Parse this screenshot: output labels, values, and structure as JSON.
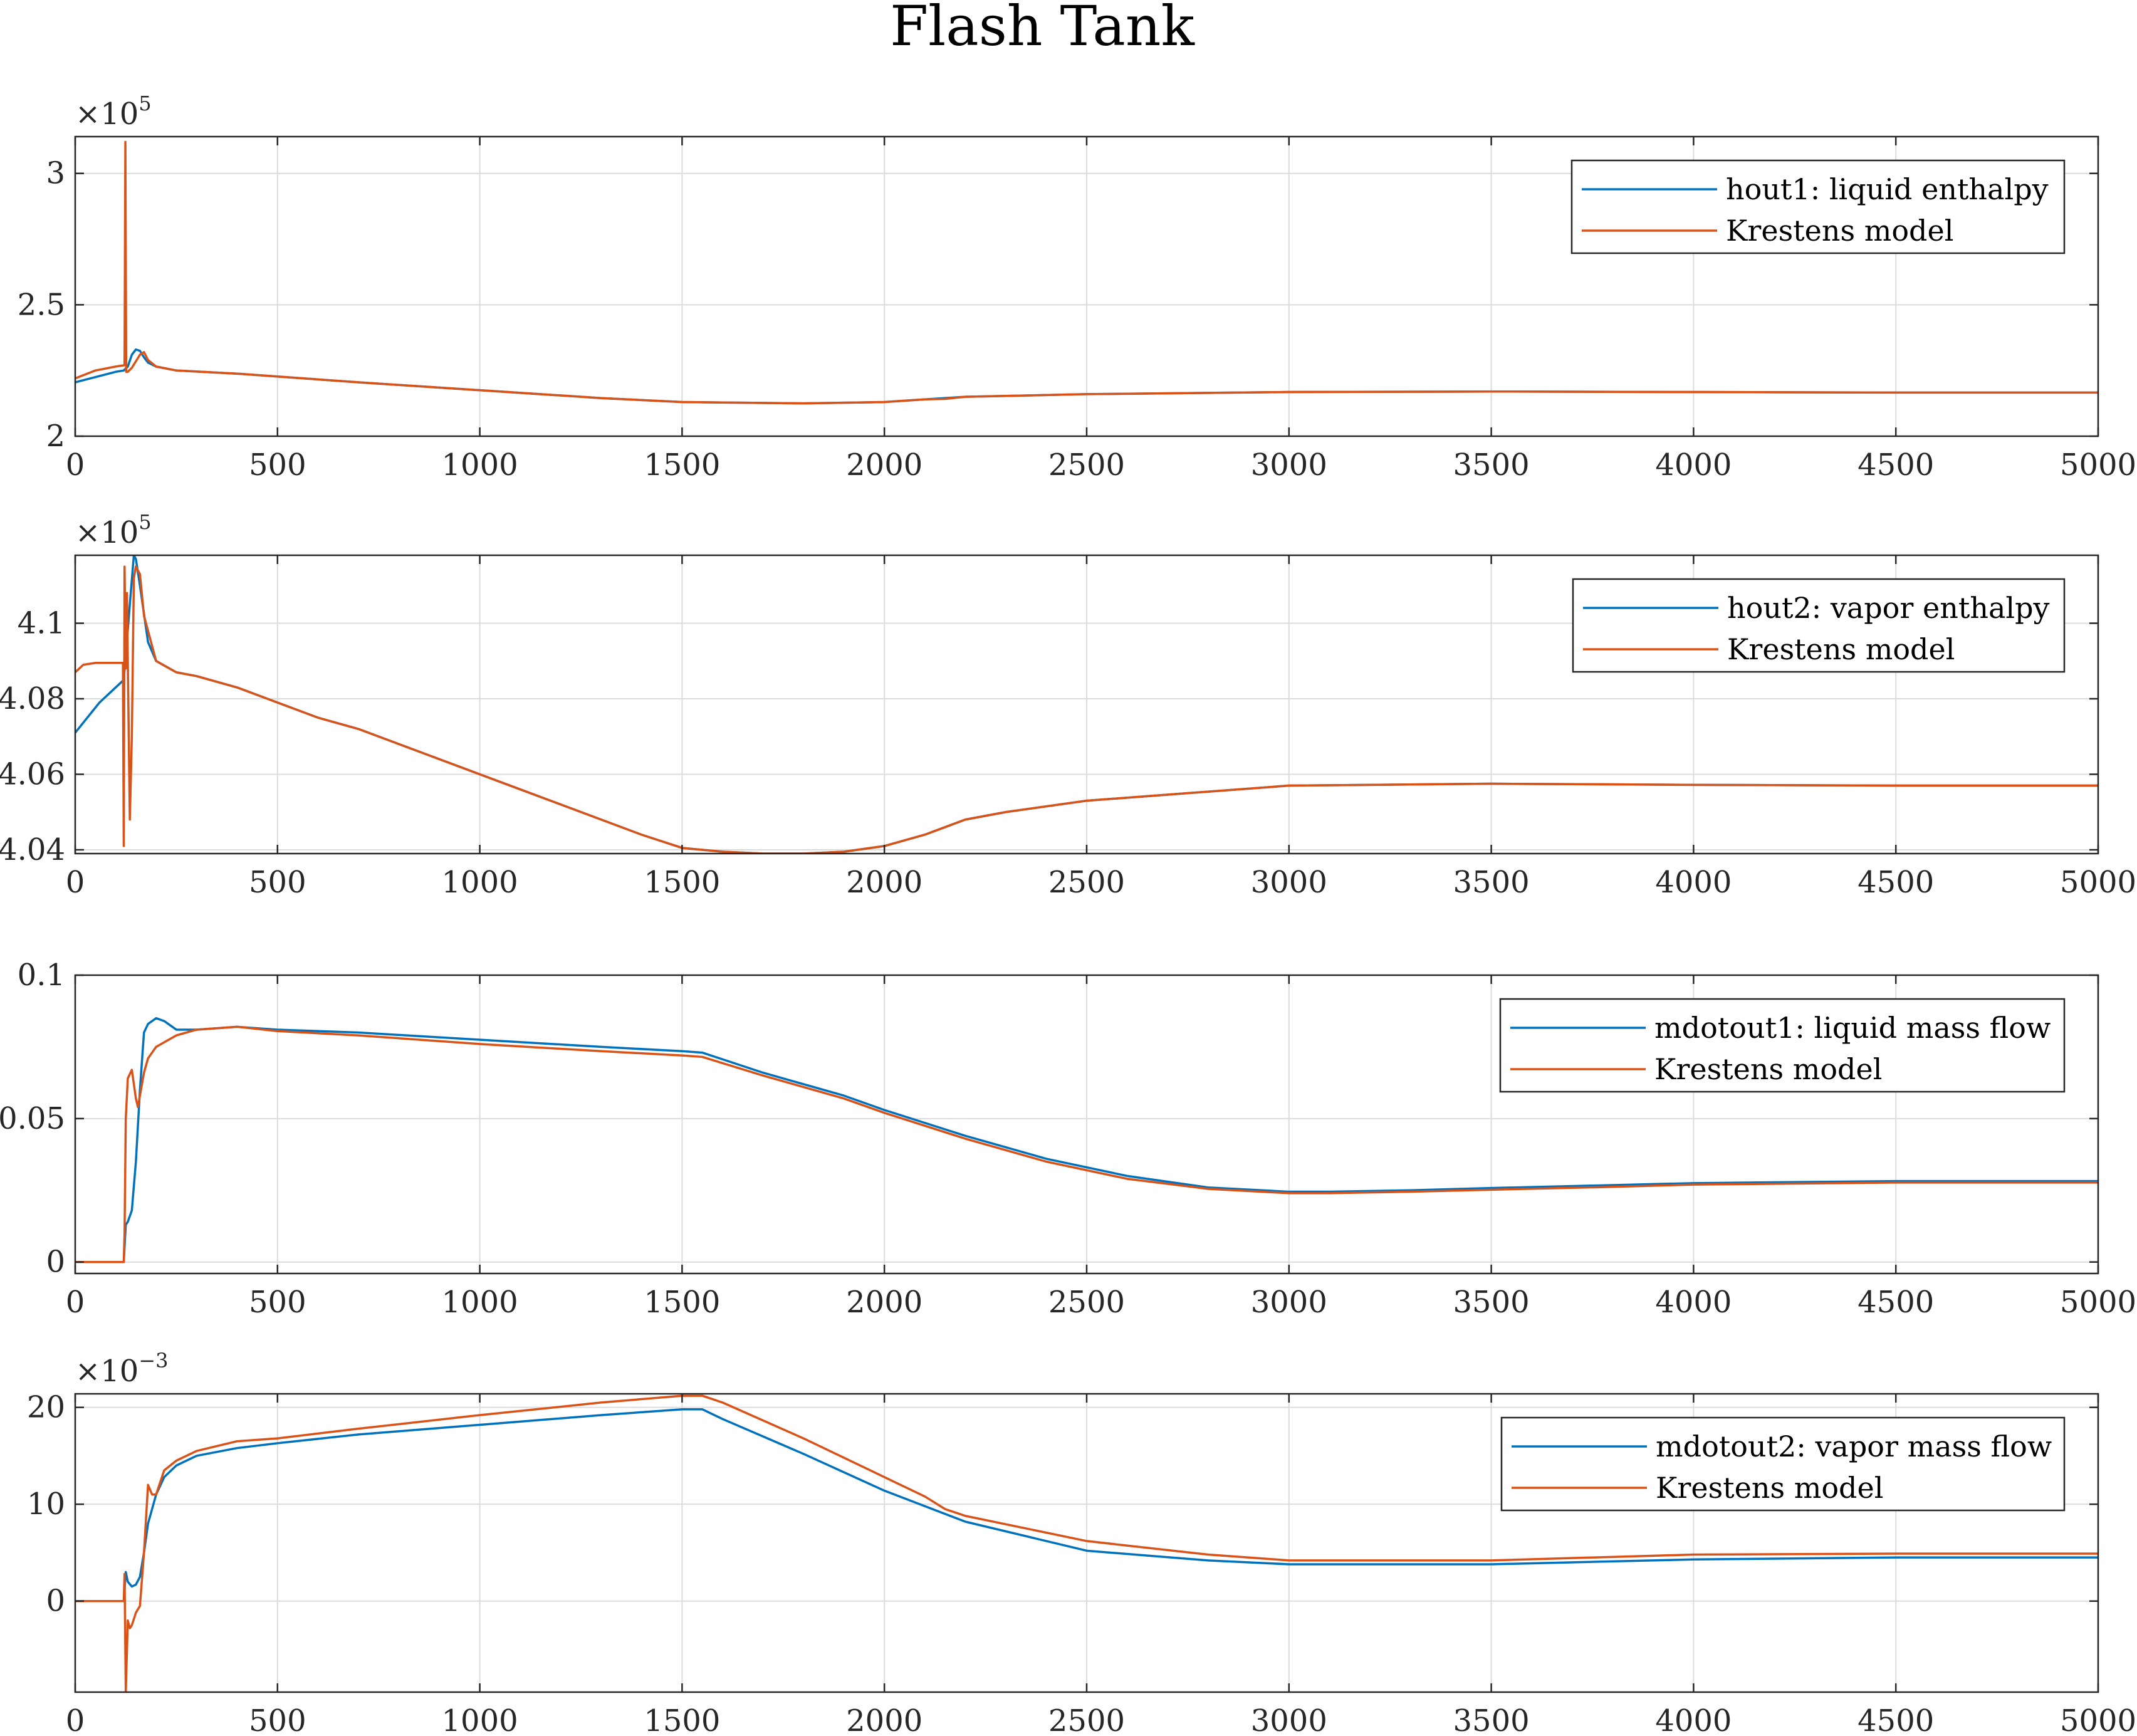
{
  "title": "Flash Tank",
  "colors": {
    "series1": "#0072BD",
    "series2": "#D95319",
    "grid": "#DCDCDC",
    "axis": "#262626"
  },
  "chart_data": [
    {
      "type": "line",
      "grid": true,
      "legend_position": "top-right",
      "xlim": [
        0,
        5000
      ],
      "ylim": [
        200000,
        314000
      ],
      "x_ticks": [
        0,
        500,
        1000,
        1500,
        2000,
        2500,
        3000,
        3500,
        4000,
        4500,
        5000
      ],
      "y_ticks": [
        200000,
        250000,
        300000
      ],
      "y_tick_labels": [
        "2",
        "2.5",
        "3"
      ],
      "y_exponent": {
        "base": "×10",
        "power": "5"
      },
      "series": [
        {
          "name": "hout1: liquid enthalpy",
          "color": "#0072BD",
          "x": [
            0,
            50,
            100,
            120,
            130,
            140,
            150,
            160,
            170,
            180,
            200,
            250,
            400,
            700,
            1000,
            1300,
            1500,
            1800,
            2000,
            2100,
            2200,
            2500,
            3000,
            3500,
            4000,
            4500,
            5000
          ],
          "y": [
            220500,
            222500,
            224500,
            225000,
            226500,
            231000,
            233000,
            232500,
            230000,
            228000,
            226500,
            225000,
            223800,
            220500,
            217500,
            214500,
            213000,
            212500,
            213000,
            214000,
            215000,
            216000,
            216800,
            217000,
            216800,
            216600,
            216600
          ]
        },
        {
          "name": "Krestens model",
          "color": "#D95319",
          "x": [
            0,
            50,
            100,
            122,
            124,
            126,
            130,
            140,
            150,
            160,
            170,
            180,
            200,
            250,
            400,
            700,
            1000,
            1300,
            1500,
            1800,
            2000,
            2100,
            2150,
            2200,
            2500,
            3000,
            3500,
            4000,
            4500,
            5000
          ],
          "y": [
            222000,
            225000,
            226500,
            227000,
            312000,
            224500,
            224500,
            226000,
            228500,
            231000,
            232000,
            229000,
            226500,
            225000,
            223800,
            220500,
            217500,
            214500,
            213000,
            212500,
            213000,
            214000,
            214200,
            215000,
            216000,
            216800,
            217000,
            216800,
            216600,
            216600
          ]
        }
      ]
    },
    {
      "type": "line",
      "grid": true,
      "legend_position": "top-right",
      "xlim": [
        0,
        5000
      ],
      "ylim": [
        403900,
        411800
      ],
      "x_ticks": [
        0,
        500,
        1000,
        1500,
        2000,
        2500,
        3000,
        3500,
        4000,
        4500,
        5000
      ],
      "y_ticks": [
        404000,
        406000,
        408000,
        410000
      ],
      "y_tick_labels": [
        "4.04",
        "4.06",
        "4.08",
        "4.1"
      ],
      "y_exponent": {
        "base": "×10",
        "power": "5"
      },
      "series": [
        {
          "name": "hout2: vapor enthalpy",
          "color": "#0072BD",
          "x": [
            0,
            30,
            60,
            90,
            120,
            135,
            145,
            150,
            160,
            180,
            200,
            250,
            300,
            400,
            500,
            600,
            700,
            800,
            1000,
            1100,
            1200,
            1300,
            1400,
            1500,
            1550,
            1600,
            1700,
            1800,
            1900,
            2000,
            2100,
            2150,
            2200,
            2300,
            2500,
            3000,
            3500,
            4000,
            4500,
            5000
          ],
          "y": [
            407100,
            407500,
            407900,
            408200,
            408500,
            410500,
            411800,
            411700,
            411000,
            409500,
            409000,
            408700,
            408600,
            408300,
            407900,
            407500,
            407200,
            406800,
            406000,
            405600,
            405200,
            404800,
            404400,
            404050,
            404000,
            403950,
            403900,
            403900,
            403950,
            404100,
            404400,
            404600,
            404800,
            405000,
            405300,
            405700,
            405750,
            405720,
            405700,
            405700
          ]
        },
        {
          "name": "Krestens model",
          "color": "#D95319",
          "x": [
            0,
            20,
            50,
            100,
            118,
            120,
            122,
            125,
            128,
            130,
            135,
            140,
            145,
            150,
            160,
            170,
            180,
            200,
            250,
            300,
            400,
            500,
            600,
            700,
            800,
            1000,
            1100,
            1200,
            1300,
            1400,
            1500,
            1550,
            1600,
            1700,
            1800,
            1900,
            2000,
            2100,
            2150,
            2200,
            2300,
            2500,
            3000,
            3500,
            4000,
            4500,
            5000
          ],
          "y": [
            408700,
            408900,
            408950,
            408950,
            408950,
            404100,
            411500,
            408800,
            410800,
            409000,
            404800,
            407000,
            411200,
            411500,
            411300,
            410200,
            409800,
            409000,
            408700,
            408600,
            408300,
            407900,
            407500,
            407200,
            406800,
            406000,
            405600,
            405200,
            404800,
            404400,
            404050,
            404000,
            403950,
            403900,
            403900,
            403950,
            404100,
            404400,
            404600,
            404800,
            405000,
            405300,
            405700,
            405750,
            405720,
            405700,
            405700
          ]
        }
      ]
    },
    {
      "type": "line",
      "grid": true,
      "legend_position": "top-right",
      "xlim": [
        0,
        5000
      ],
      "ylim": [
        -0.004,
        0.1
      ],
      "x_ticks": [
        0,
        500,
        1000,
        1500,
        2000,
        2500,
        3000,
        3500,
        4000,
        4500,
        5000
      ],
      "y_ticks": [
        0,
        0.05,
        0.1
      ],
      "y_tick_labels": [
        "0",
        "0.05",
        "0.1"
      ],
      "series": [
        {
          "name": "mdotout1: liquid mass flow",
          "color": "#0072BD",
          "x": [
            0,
            60,
            120,
            125,
            130,
            140,
            150,
            160,
            170,
            180,
            200,
            220,
            250,
            300,
            400,
            500,
            700,
            1000,
            1300,
            1500,
            1550,
            1700,
            1900,
            2000,
            2200,
            2400,
            2600,
            2800,
            3000,
            3100,
            3300,
            3500,
            3800,
            4000,
            4500,
            5000
          ],
          "y": [
            0,
            0,
            0,
            0.013,
            0.014,
            0.018,
            0.035,
            0.06,
            0.08,
            0.083,
            0.085,
            0.084,
            0.081,
            0.081,
            0.082,
            0.081,
            0.08,
            0.0775,
            0.075,
            0.0735,
            0.073,
            0.066,
            0.058,
            0.053,
            0.044,
            0.036,
            0.03,
            0.026,
            0.0245,
            0.0245,
            0.025,
            0.0258,
            0.0268,
            0.0275,
            0.0282,
            0.0282
          ]
        },
        {
          "name": "Krestens model",
          "color": "#D95319",
          "x": [
            0,
            60,
            120,
            122,
            125,
            130,
            140,
            150,
            155,
            160,
            170,
            180,
            200,
            250,
            300,
            400,
            500,
            700,
            1000,
            1300,
            1500,
            1550,
            1700,
            1900,
            2000,
            2200,
            2400,
            2600,
            2800,
            3000,
            3100,
            3300,
            3500,
            3800,
            4000,
            4500,
            5000
          ],
          "y": [
            0,
            0,
            0,
            0.01,
            0.05,
            0.064,
            0.067,
            0.057,
            0.054,
            0.058,
            0.066,
            0.071,
            0.075,
            0.079,
            0.081,
            0.082,
            0.0805,
            0.079,
            0.076,
            0.0735,
            0.072,
            0.0715,
            0.065,
            0.057,
            0.052,
            0.043,
            0.035,
            0.029,
            0.0255,
            0.024,
            0.024,
            0.0245,
            0.0252,
            0.0262,
            0.027,
            0.0277,
            0.0277
          ]
        }
      ]
    },
    {
      "type": "line",
      "grid": true,
      "legend_position": "top-right",
      "xlim": [
        0,
        5000
      ],
      "ylim": [
        -0.0094,
        0.0214
      ],
      "x_ticks": [
        0,
        500,
        1000,
        1500,
        2000,
        2500,
        3000,
        3500,
        4000,
        4500,
        5000
      ],
      "y_ticks": [
        0,
        0.01,
        0.02
      ],
      "y_tick_labels": [
        "0",
        "10",
        "20"
      ],
      "y_exponent": {
        "base": "×10",
        "power": "−3"
      },
      "series": [
        {
          "name": "mdotout2: vapor mass flow",
          "color": "#0072BD",
          "x": [
            0,
            60,
            120,
            125,
            130,
            140,
            150,
            160,
            170,
            180,
            200,
            220,
            250,
            300,
            400,
            500,
            700,
            1000,
            1300,
            1500,
            1550,
            1600,
            1800,
            2000,
            2200,
            2500,
            2800,
            3000,
            3500,
            4000,
            4500,
            5000
          ],
          "y": [
            0,
            0,
            0,
            0.003,
            0.002,
            0.0015,
            0.0017,
            0.0025,
            0.005,
            0.008,
            0.011,
            0.0128,
            0.014,
            0.015,
            0.0158,
            0.0163,
            0.0172,
            0.0182,
            0.0192,
            0.0198,
            0.0198,
            0.0188,
            0.0152,
            0.0114,
            0.0082,
            0.0052,
            0.0042,
            0.0038,
            0.0038,
            0.0043,
            0.0045,
            0.0045
          ]
        },
        {
          "name": "Krestens model",
          "color": "#D95319",
          "x": [
            0,
            60,
            120,
            122,
            125,
            130,
            135,
            140,
            150,
            160,
            170,
            180,
            190,
            200,
            220,
            250,
            300,
            400,
            500,
            700,
            1000,
            1300,
            1500,
            1550,
            1600,
            1800,
            2000,
            2100,
            2150,
            2200,
            2500,
            2800,
            3000,
            3500,
            4000,
            4500,
            5000
          ],
          "y": [
            0,
            0,
            0,
            0.0028,
            -0.0094,
            -0.002,
            -0.0028,
            -0.0025,
            -0.0012,
            -0.0005,
            0.005,
            0.012,
            0.011,
            0.011,
            0.0135,
            0.0145,
            0.0155,
            0.0165,
            0.0168,
            0.0178,
            0.0192,
            0.0205,
            0.0212,
            0.0212,
            0.0205,
            0.0168,
            0.0128,
            0.0108,
            0.0095,
            0.0088,
            0.0062,
            0.0048,
            0.0042,
            0.0042,
            0.0048,
            0.0049,
            0.0049
          ]
        }
      ]
    }
  ]
}
